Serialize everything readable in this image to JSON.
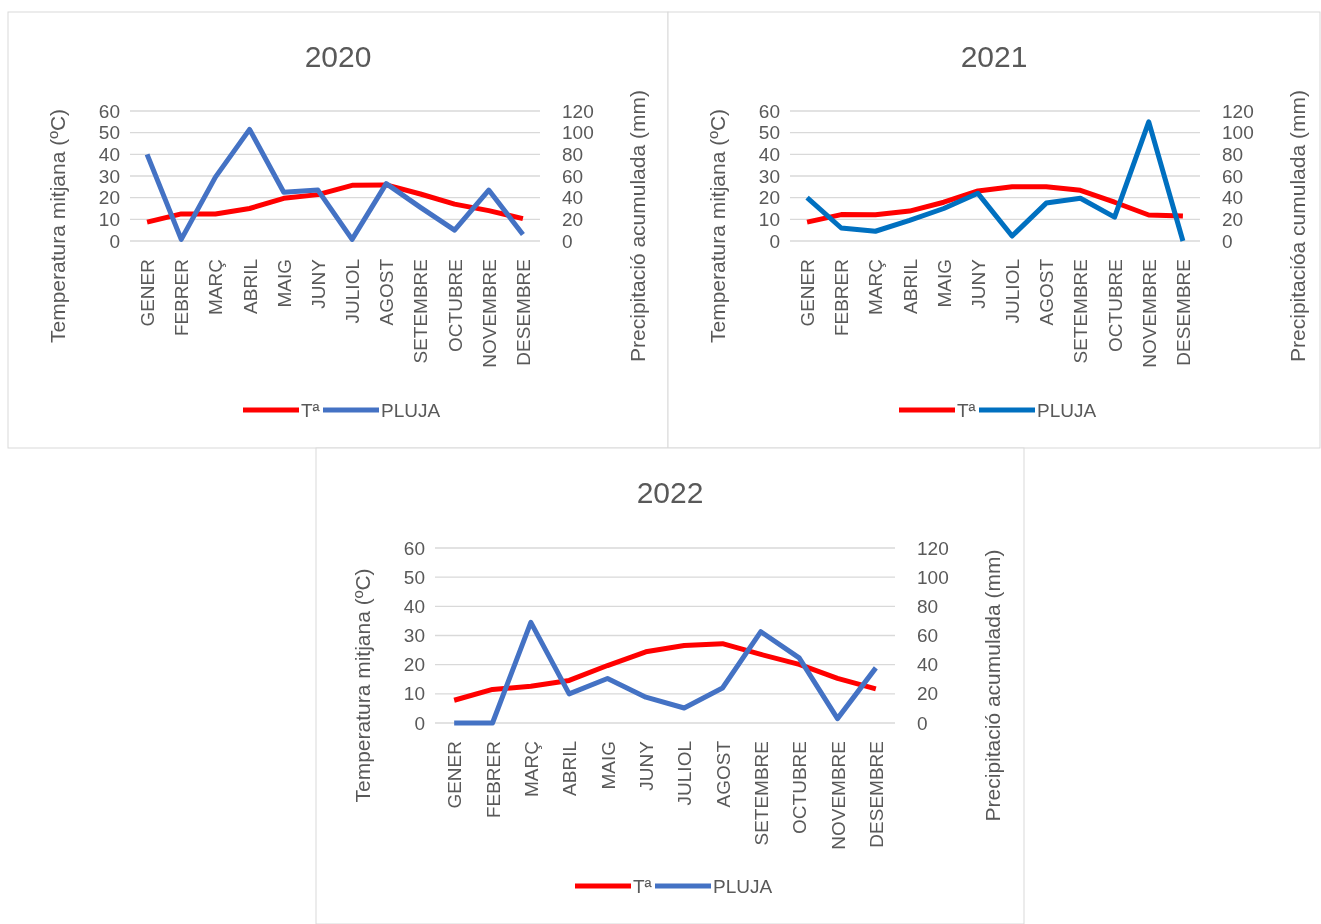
{
  "chart_data": [
    {
      "type": "line",
      "title": "2020",
      "ylabel": "Temperatura mitjana (ºC)",
      "y2label": "Precipitació acumulada (mm)",
      "categories": [
        "GENER",
        "FEBRER",
        "MARÇ",
        "ABRIL",
        "MAIG",
        "JUNY",
        "JULIOL",
        "AGOST",
        "SETEMBRE",
        "OCTUBRE",
        "NOVEMBRE",
        "DESEMBRE"
      ],
      "series": [
        {
          "name": "Tª",
          "color": "#ff0000",
          "values": [
            8.7,
            12.5,
            12.5,
            15,
            19.7,
            21.4,
            25.7,
            25.9,
            21.7,
            17,
            14,
            10.3
          ]
        },
        {
          "name": "PLUJA",
          "color": "#4472c4",
          "axis": "y2",
          "values": [
            80,
            1.5,
            59,
            103,
            45,
            47,
            1.5,
            53,
            31,
            10,
            47,
            6
          ]
        }
      ],
      "ylim": [
        0,
        60
      ],
      "yticks": [
        0,
        10,
        20,
        30,
        40,
        50,
        60
      ],
      "y2lim": [
        0,
        120
      ],
      "y2ticks": [
        0,
        20,
        40,
        60,
        80,
        100,
        120
      ],
      "grid": "y",
      "legend": "bottom"
    },
    {
      "type": "line",
      "title": "2021",
      "ylabel": "Temperatura mitjana (ºC)",
      "y2label": "Precipitacióa cumulada (mm)",
      "categories": [
        "GENER",
        "FEBRER",
        "MARÇ",
        "ABRIL",
        "MAIG",
        "JUNY",
        "JULIOL",
        "AGOST",
        "SETEMBRE",
        "OCTUBRE",
        "NOVEMBRE",
        "DESEMBRE"
      ],
      "series": [
        {
          "name": "Tª",
          "color": "#ff0000",
          "values": [
            8.7,
            12.2,
            12.1,
            13.8,
            17.9,
            23.1,
            25,
            25,
            23.4,
            17.9,
            12,
            11.5
          ]
        },
        {
          "name": "PLUJA",
          "color": "#0070c0",
          "axis": "y2",
          "values": [
            40,
            12,
            9,
            19,
            30,
            44,
            4.6,
            35,
            39.5,
            22,
            110,
            0
          ]
        }
      ],
      "ylim": [
        0,
        60
      ],
      "yticks": [
        0,
        10,
        20,
        30,
        40,
        50,
        60
      ],
      "y2lim": [
        0,
        120
      ],
      "y2ticks": [
        0,
        20,
        40,
        60,
        80,
        100,
        120
      ],
      "grid": "y",
      "legend": "bottom"
    },
    {
      "type": "line",
      "title": "2022",
      "ylabel": "Temperatura mitjana (ºC)",
      "y2label": "Precipitació acumulada (mm)",
      "categories": [
        "GENER",
        "FEBRER",
        "MARÇ",
        "ABRIL",
        "MAIG",
        "JUNY",
        "JULIOL",
        "AGOST",
        "SETEMBRE",
        "OCTUBRE",
        "NOVEMBRE",
        "DESEMBRE"
      ],
      "series": [
        {
          "name": "Tª",
          "color": "#ff0000",
          "values": [
            7.8,
            11.5,
            12.6,
            14.6,
            19.7,
            24.4,
            26.6,
            27.2,
            23.5,
            20.1,
            15.3,
            11.7
          ]
        },
        {
          "name": "PLUJA",
          "color": "#4472c4",
          "axis": "y2",
          "values": [
            0,
            0,
            69,
            20,
            30.5,
            17.7,
            10.3,
            24,
            62.6,
            44.7,
            3,
            37.8
          ]
        }
      ],
      "ylim": [
        0,
        60
      ],
      "yticks": [
        0,
        10,
        20,
        30,
        40,
        50,
        60
      ],
      "y2lim": [
        0,
        120
      ],
      "y2ticks": [
        0,
        20,
        40,
        60,
        80,
        100,
        120
      ],
      "grid": "y",
      "legend": "bottom"
    }
  ]
}
